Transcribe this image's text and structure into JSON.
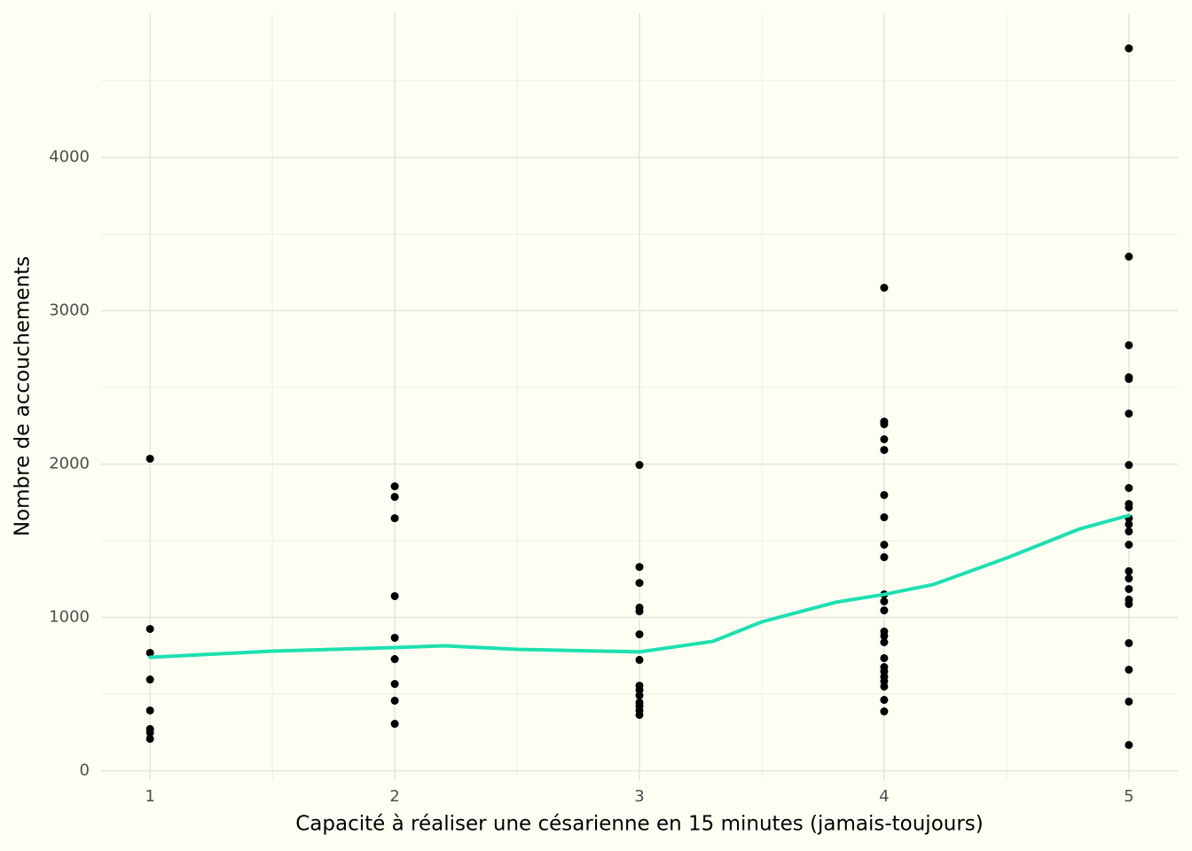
{
  "chart_data": {
    "type": "scatter",
    "x_label": "Capacité à réaliser une césarienne en 15 minutes (jamais-toujours)",
    "y_label": "Nombre de accouchements",
    "x": [
      1,
      1,
      1,
      1,
      1,
      1,
      1,
      1,
      2,
      2,
      2,
      2,
      2,
      2,
      2,
      2,
      2,
      3,
      3,
      3,
      3,
      3,
      3,
      3,
      3,
      3,
      3,
      3,
      3,
      3,
      3,
      4,
      4,
      4,
      4,
      4,
      4,
      4,
      4,
      4,
      4,
      4,
      4,
      4,
      4,
      4,
      4,
      4,
      4,
      4,
      4,
      4,
      4,
      4,
      5,
      5,
      5,
      5,
      5,
      5,
      5,
      5,
      5,
      5,
      5,
      5,
      5,
      5,
      5,
      5,
      5,
      5,
      5,
      5,
      5,
      5,
      5
    ],
    "values": [
      2035,
      925,
      769,
      595,
      393,
      272,
      249,
      208,
      1855,
      1786,
      1647,
      1139,
      867,
      728,
      566,
      457,
      306,
      1994,
      1329,
      1225,
      1064,
      1040,
      890,
      723,
      555,
      526,
      491,
      445,
      422,
      393,
      364,
      3150,
      2277,
      2260,
      2162,
      2092,
      1798,
      1653,
      1474,
      1393,
      1150,
      1104,
      1046,
      908,
      879,
      838,
      734,
      676,
      647,
      613,
      584,
      549,
      462,
      387,
      4711,
      3353,
      2775,
      2566,
      2555,
      2329,
      1994,
      1844,
      1740,
      1717,
      1647,
      1607,
      1561,
      1474,
      1301,
      1254,
      1185,
      1116,
      1087,
      832,
      659,
      451,
      168
    ],
    "color": "#000000",
    "smooth": {
      "x": [
        1,
        1.5,
        2,
        2.2,
        2.5,
        3,
        3.3,
        3.5,
        3.8,
        4,
        4.2,
        4.5,
        4.8,
        5
      ],
      "values": [
        740,
        780,
        803,
        815,
        792,
        775,
        844,
        971,
        1098,
        1150,
        1214,
        1387,
        1578,
        1665
      ],
      "color": "#1de0b0"
    },
    "xlim": [
      0.8,
      5.2
    ],
    "ylim": [
      -61,
      4940
    ],
    "xticks": [
      1,
      2,
      3,
      4,
      5
    ],
    "yticks": [
      0,
      1000,
      2000,
      3000,
      4000
    ],
    "xminor": [
      1.5,
      2.5,
      3.5,
      4.5
    ],
    "yminor": [
      500,
      1500,
      2500,
      3500,
      4500
    ],
    "grid": true
  }
}
